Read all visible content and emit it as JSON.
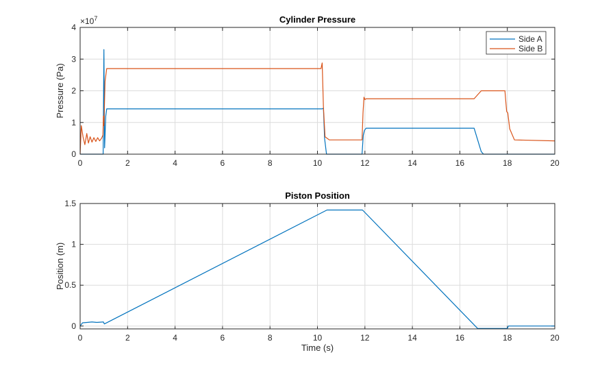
{
  "chart_data": [
    {
      "type": "line",
      "title": "Cylinder Pressure",
      "xlabel": "",
      "ylabel": "Pressure (Pa)",
      "exponent_label": "×10",
      "exponent": "7",
      "xlim": [
        0,
        20
      ],
      "ylim": [
        0,
        4
      ],
      "y_scale": 10000000,
      "xticks": [
        "0",
        "2",
        "4",
        "6",
        "8",
        "10",
        "12",
        "14",
        "16",
        "18",
        "20"
      ],
      "yticks": [
        "0",
        "1",
        "2",
        "3",
        "4"
      ],
      "grid": true,
      "legend_position": "top-right",
      "series": [
        {
          "name": "Side A",
          "color": "#0072BD",
          "points": [
            [
              0,
              0
            ],
            [
              0.97,
              0
            ],
            [
              1.0,
              3.3
            ],
            [
              1.03,
              0.2
            ],
            [
              1.08,
              1.2
            ],
            [
              1.12,
              1.43
            ],
            [
              10.2,
              1.43
            ],
            [
              10.25,
              1.45
            ],
            [
              10.3,
              0.5
            ],
            [
              10.38,
              0
            ],
            [
              11.88,
              0
            ],
            [
              11.93,
              0.6
            ],
            [
              11.98,
              0.75
            ],
            [
              12.05,
              0.82
            ],
            [
              16.6,
              0.82
            ],
            [
              16.75,
              0.45
            ],
            [
              16.9,
              0.08
            ],
            [
              17.0,
              0
            ],
            [
              20,
              0
            ]
          ]
        },
        {
          "name": "Side B",
          "color": "#D95319",
          "points": [
            [
              0,
              0
            ],
            [
              0.05,
              0.9
            ],
            [
              0.12,
              0.55
            ],
            [
              0.2,
              0.3
            ],
            [
              0.28,
              0.65
            ],
            [
              0.35,
              0.35
            ],
            [
              0.42,
              0.55
            ],
            [
              0.5,
              0.38
            ],
            [
              0.58,
              0.52
            ],
            [
              0.66,
              0.4
            ],
            [
              0.74,
              0.52
            ],
            [
              0.82,
              0.42
            ],
            [
              0.9,
              0.5
            ],
            [
              0.96,
              0.6
            ],
            [
              0.98,
              1.2
            ],
            [
              1.0,
              0.9
            ],
            [
              1.05,
              2.3
            ],
            [
              1.12,
              2.7
            ],
            [
              10.15,
              2.7
            ],
            [
              10.2,
              2.88
            ],
            [
              10.25,
              1.5
            ],
            [
              10.32,
              0.55
            ],
            [
              10.5,
              0.45
            ],
            [
              11.88,
              0.45
            ],
            [
              11.92,
              1.3
            ],
            [
              11.96,
              1.8
            ],
            [
              12.0,
              1.72
            ],
            [
              12.05,
              1.75
            ],
            [
              16.6,
              1.75
            ],
            [
              16.9,
              2.0
            ],
            [
              17.9,
              2.0
            ],
            [
              17.97,
              1.35
            ],
            [
              18.02,
              1.3
            ],
            [
              18.1,
              0.8
            ],
            [
              18.3,
              0.45
            ],
            [
              20,
              0.42
            ]
          ]
        }
      ]
    },
    {
      "type": "line",
      "title": "Piston Position",
      "xlabel": "Time (s)",
      "ylabel": "Position (m)",
      "xlim": [
        0,
        20
      ],
      "ylim": [
        -0.035,
        1.5
      ],
      "xticks": [
        "0",
        "2",
        "4",
        "6",
        "8",
        "10",
        "12",
        "14",
        "16",
        "18",
        "20"
      ],
      "yticks": [
        "0",
        "0.5",
        "1",
        "1.5"
      ],
      "grid": true,
      "series": [
        {
          "name": "Position",
          "color": "#0072BD",
          "points": [
            [
              0,
              0
            ],
            [
              0.1,
              0.04
            ],
            [
              0.3,
              0.045
            ],
            [
              0.5,
              0.05
            ],
            [
              0.7,
              0.045
            ],
            [
              0.98,
              0.05
            ],
            [
              1.02,
              0.025
            ],
            [
              10.4,
              1.42
            ],
            [
              11.9,
              1.42
            ],
            [
              16.75,
              -0.03
            ],
            [
              18.0,
              -0.03
            ],
            [
              18.05,
              0
            ],
            [
              20,
              0
            ]
          ]
        }
      ]
    }
  ]
}
